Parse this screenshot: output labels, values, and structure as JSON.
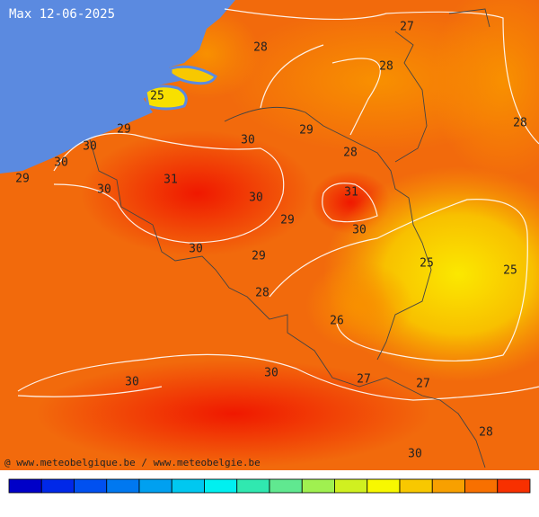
{
  "title": "Max 12-06-2025",
  "credit": "@ www.meteobelgique.be / www.meteobelgie.be",
  "labels": [
    "28",
    "27",
    "28",
    "25",
    "29",
    "30",
    "29",
    "28",
    "28",
    "30",
    "30",
    "29",
    "31",
    "30",
    "30",
    "31",
    "29",
    "30",
    "30",
    "29",
    "25",
    "25",
    "28",
    "26",
    "30",
    "30",
    "27",
    "27",
    "28",
    "30"
  ],
  "colorbar": [
    "#0000c8",
    "#0028e8",
    "#0050f0",
    "#0078f0",
    "#00a0f0",
    "#00c8f0",
    "#00f0f0",
    "#30e8b0",
    "#60e890",
    "#a0f050",
    "#d0f020",
    "#f8f800",
    "#f8c800",
    "#f8a000",
    "#f87000",
    "#f83000"
  ]
}
